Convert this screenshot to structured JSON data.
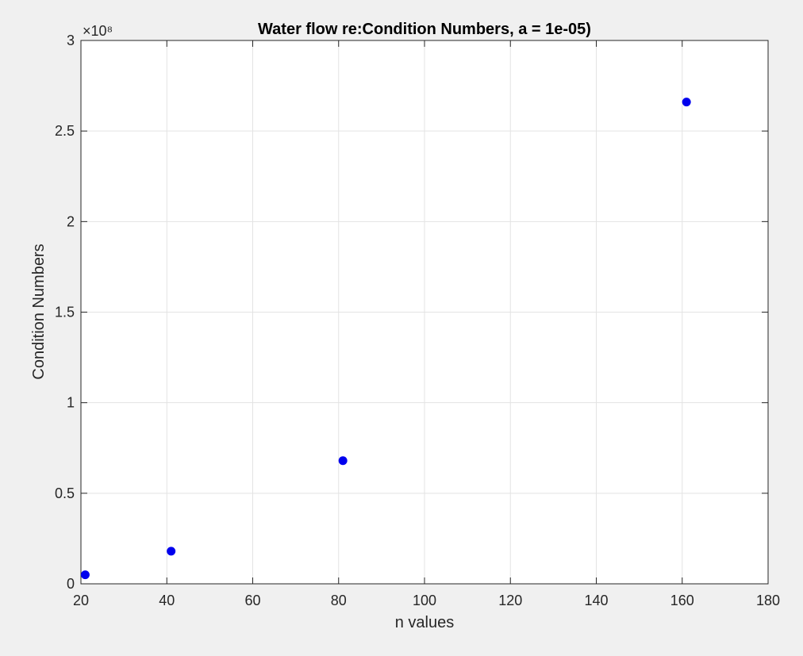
{
  "colors": {
    "figure_bg": "#f0f0f0",
    "axes_bg": "#ffffff",
    "marker": "#0000ee",
    "grid": "#e3e3e3",
    "axis": "#262626"
  },
  "chart_data": {
    "type": "scatter",
    "title": "Water flow re:Condition Numbers, a = 1e-05)",
    "xlabel": "n values",
    "ylabel": "Condition Numbers",
    "xlim": [
      20,
      180
    ],
    "ylim": [
      0,
      300000000
    ],
    "y_exponent_label": "×10⁸",
    "x_ticks": [
      20,
      40,
      60,
      80,
      100,
      120,
      140,
      160,
      180
    ],
    "x_tick_labels": [
      "20",
      "40",
      "60",
      "80",
      "100",
      "120",
      "140",
      "160",
      "180"
    ],
    "y_ticks": [
      0,
      50000000,
      100000000,
      150000000,
      200000000,
      250000000,
      300000000
    ],
    "y_tick_labels": [
      "0",
      "0.5",
      "1",
      "1.5",
      "2",
      "2.5",
      "3"
    ],
    "grid": true,
    "legend": "none",
    "series": [
      {
        "x": [
          21,
          41,
          81,
          161
        ],
        "y": [
          5000000,
          18000000,
          68000000,
          266000000
        ]
      }
    ]
  }
}
